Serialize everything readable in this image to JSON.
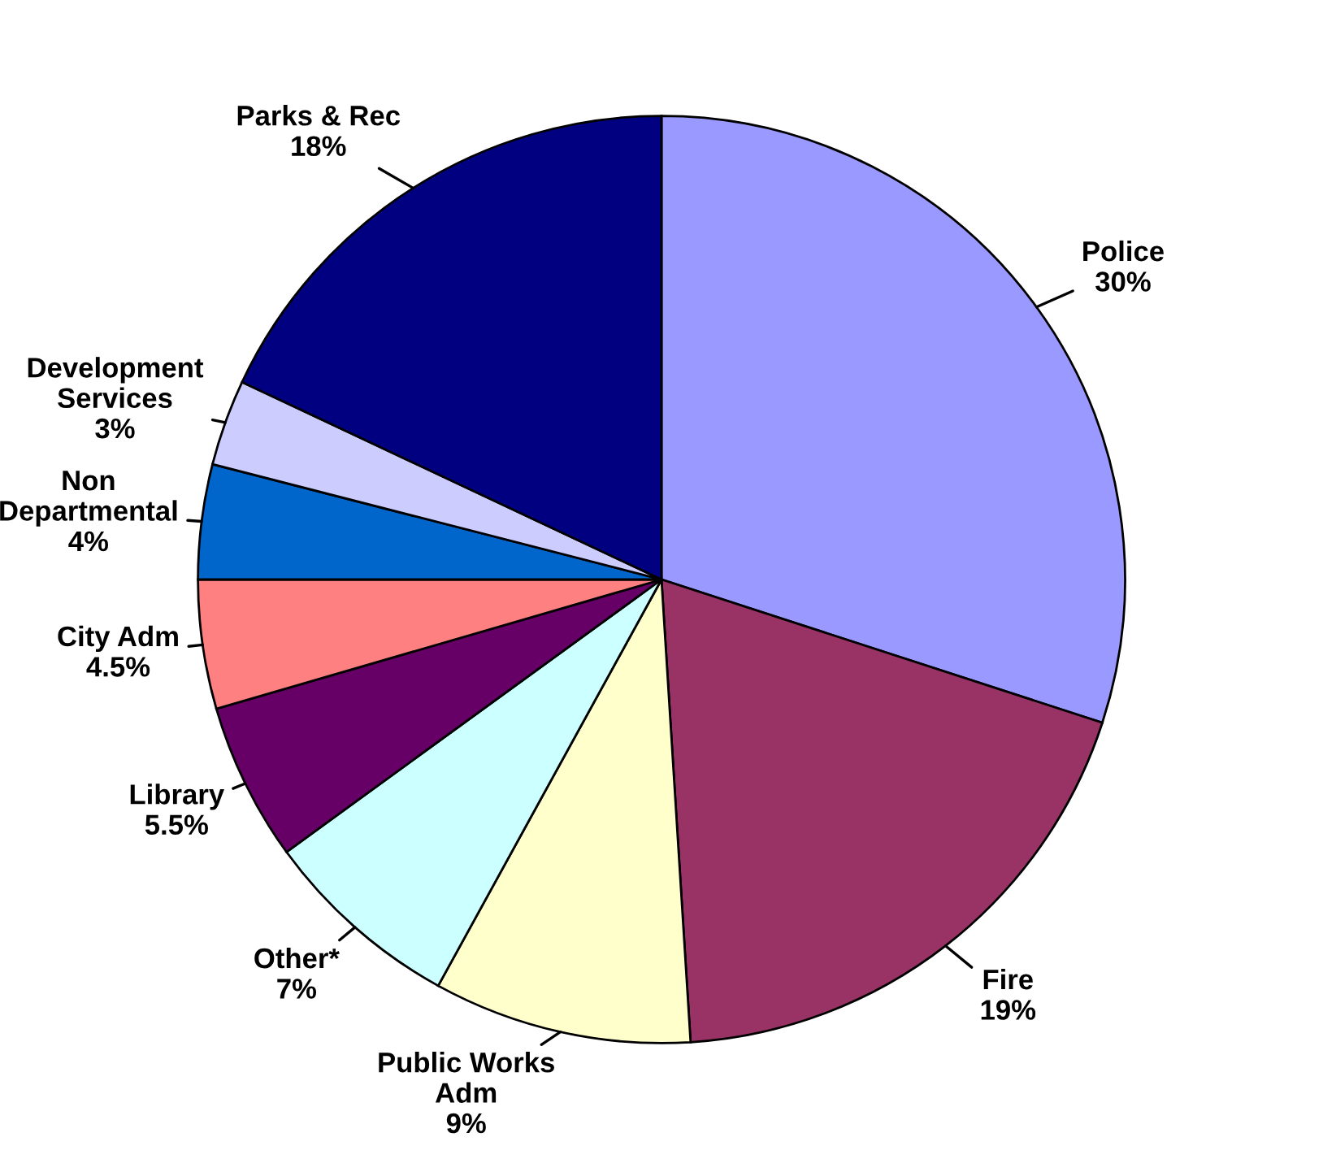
{
  "chart_data": {
    "type": "pie",
    "categories": [
      "Police",
      "Fire",
      "Public Works\nAdm",
      "Other*",
      "Library",
      "City Adm",
      "Non\nDepartmental",
      "Development\nServices",
      "Parks & Rec"
    ],
    "values": [
      30,
      19,
      9,
      7,
      5.5,
      4.5,
      4,
      3,
      18
    ],
    "value_labels": [
      "30%",
      "19%",
      "9%",
      "7%",
      "5.5%",
      "4.5%",
      "4%",
      "3%",
      "18%"
    ],
    "colors": [
      "#9999ff",
      "#993366",
      "#ffffcc",
      "#ccffff",
      "#660066",
      "#ff8080",
      "#0066cc",
      "#ccccff",
      "#000080"
    ],
    "legend": false
  }
}
